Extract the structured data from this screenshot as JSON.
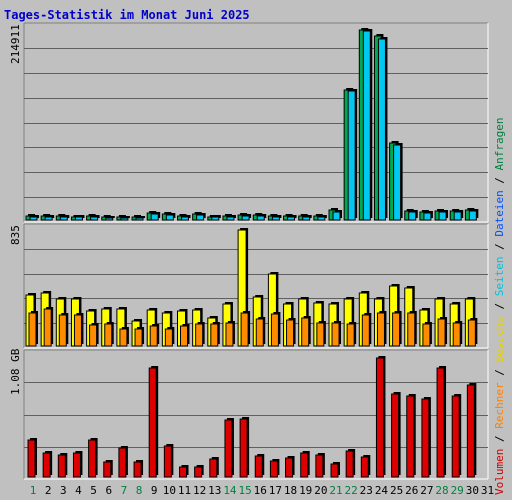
{
  "title": "Tages-Statistik im Monat Juni 2025",
  "legend": [
    {
      "label": "Volumen",
      "color": "#cc0000"
    },
    {
      "label": "Rechner",
      "color": "#ff8000"
    },
    {
      "label": "Besuche",
      "color": "#e5d000"
    },
    {
      "label": "Seiten",
      "color": "#00c0e0"
    },
    {
      "label": "Dateien",
      "color": "#0050ff"
    },
    {
      "label": "Anfragen",
      "color": "#008040"
    }
  ],
  "separator": " / ",
  "colors": {
    "background": "#c0c0c0",
    "anfragen": "#00aa55",
    "dateien": "#0050ff",
    "seiten": "#00c8f0",
    "besuche": "#ffff00",
    "rechner": "#ff8c00",
    "volumen": "#dd0000",
    "gridline": "#606060",
    "weekend_label": "#008040",
    "weekday_label": "#000000"
  },
  "chart_data": [
    {
      "type": "bar",
      "name": "requests",
      "ymax_label": "214911",
      "ylim": [
        0,
        214911
      ],
      "categories": [
        "1",
        "2",
        "3",
        "4",
        "5",
        "6",
        "7",
        "8",
        "9",
        "10",
        "11",
        "12",
        "13",
        "14",
        "15",
        "16",
        "17",
        "18",
        "19",
        "20",
        "21",
        "22",
        "23",
        "24",
        "25",
        "26",
        "27",
        "28",
        "29",
        "30"
      ],
      "series": [
        {
          "name": "Anfragen",
          "values": [
            4000,
            4300,
            4000,
            3700,
            4000,
            3000,
            2800,
            3300,
            7500,
            6200,
            4200,
            6800,
            3300,
            4500,
            5600,
            5100,
            4600,
            4100,
            4200,
            4500,
            10800,
            145000,
            211500,
            205000,
            86000,
            9600,
            8800,
            10300,
            10300,
            11200
          ]
        },
        {
          "name": "Dateien",
          "values": [
            3200,
            3600,
            3300,
            3000,
            3300,
            2400,
            2200,
            2700,
            6200,
            5100,
            3500,
            5600,
            2800,
            3700,
            4700,
            4200,
            3800,
            3400,
            3500,
            3800,
            9000,
            144000,
            210000,
            202000,
            83000,
            8400,
            7700,
            9000,
            9000,
            9700
          ]
        }
      ]
    },
    {
      "type": "bar",
      "name": "visits",
      "ymax_label": "835",
      "ylim": [
        0,
        835
      ],
      "categories": [
        "1",
        "2",
        "3",
        "4",
        "5",
        "6",
        "7",
        "8",
        "9",
        "10",
        "11",
        "12",
        "13",
        "14",
        "15",
        "16",
        "17",
        "18",
        "19",
        "20",
        "21",
        "22",
        "23",
        "24",
        "25",
        "26",
        "27",
        "28",
        "29",
        "30"
      ],
      "series": [
        {
          "name": "Besuche",
          "values": [
            370,
            385,
            335,
            335,
            250,
            265,
            265,
            180,
            260,
            240,
            250,
            260,
            200,
            305,
            835,
            355,
            515,
            300,
            340,
            310,
            300,
            335,
            380,
            340,
            430,
            415,
            260,
            335,
            305,
            340
          ]
        },
        {
          "name": "Rechner",
          "values": [
            235,
            265,
            220,
            225,
            150,
            155,
            125,
            120,
            145,
            125,
            145,
            155,
            155,
            165,
            240,
            195,
            230,
            185,
            200,
            165,
            165,
            155,
            225,
            240,
            240,
            235,
            155,
            195,
            165,
            185
          ]
        }
      ]
    },
    {
      "type": "bar",
      "name": "volume",
      "ymax_label": "1.08 GB",
      "ylim": [
        0,
        1.08
      ],
      "unit": "GB",
      "categories": [
        "1",
        "2",
        "3",
        "4",
        "5",
        "6",
        "7",
        "8",
        "9",
        "10",
        "11",
        "12",
        "13",
        "14",
        "15",
        "16",
        "17",
        "18",
        "19",
        "20",
        "21",
        "22",
        "23",
        "24",
        "25",
        "26",
        "27",
        "28",
        "29",
        "30"
      ],
      "series": [
        {
          "name": "Volumen",
          "values": [
            0.33,
            0.21,
            0.2,
            0.21,
            0.33,
            0.13,
            0.26,
            0.13,
            0.97,
            0.28,
            0.09,
            0.09,
            0.16,
            0.51,
            0.52,
            0.19,
            0.14,
            0.17,
            0.21,
            0.2,
            0.12,
            0.23,
            0.18,
            1.06,
            0.74,
            0.72,
            0.7,
            0.97,
            0.72,
            0.82
          ]
        }
      ]
    }
  ],
  "x_labels": [
    "1",
    "2",
    "3",
    "4",
    "5",
    "6",
    "7",
    "8",
    "9",
    "10",
    "11",
    "12",
    "13",
    "14",
    "15",
    "16",
    "17",
    "18",
    "19",
    "20",
    "21",
    "22",
    "23",
    "24",
    "25",
    "26",
    "27",
    "28",
    "29",
    "30",
    "31"
  ],
  "weekend_days": [
    "1",
    "7",
    "8",
    "14",
    "15",
    "21",
    "22",
    "28",
    "29"
  ]
}
